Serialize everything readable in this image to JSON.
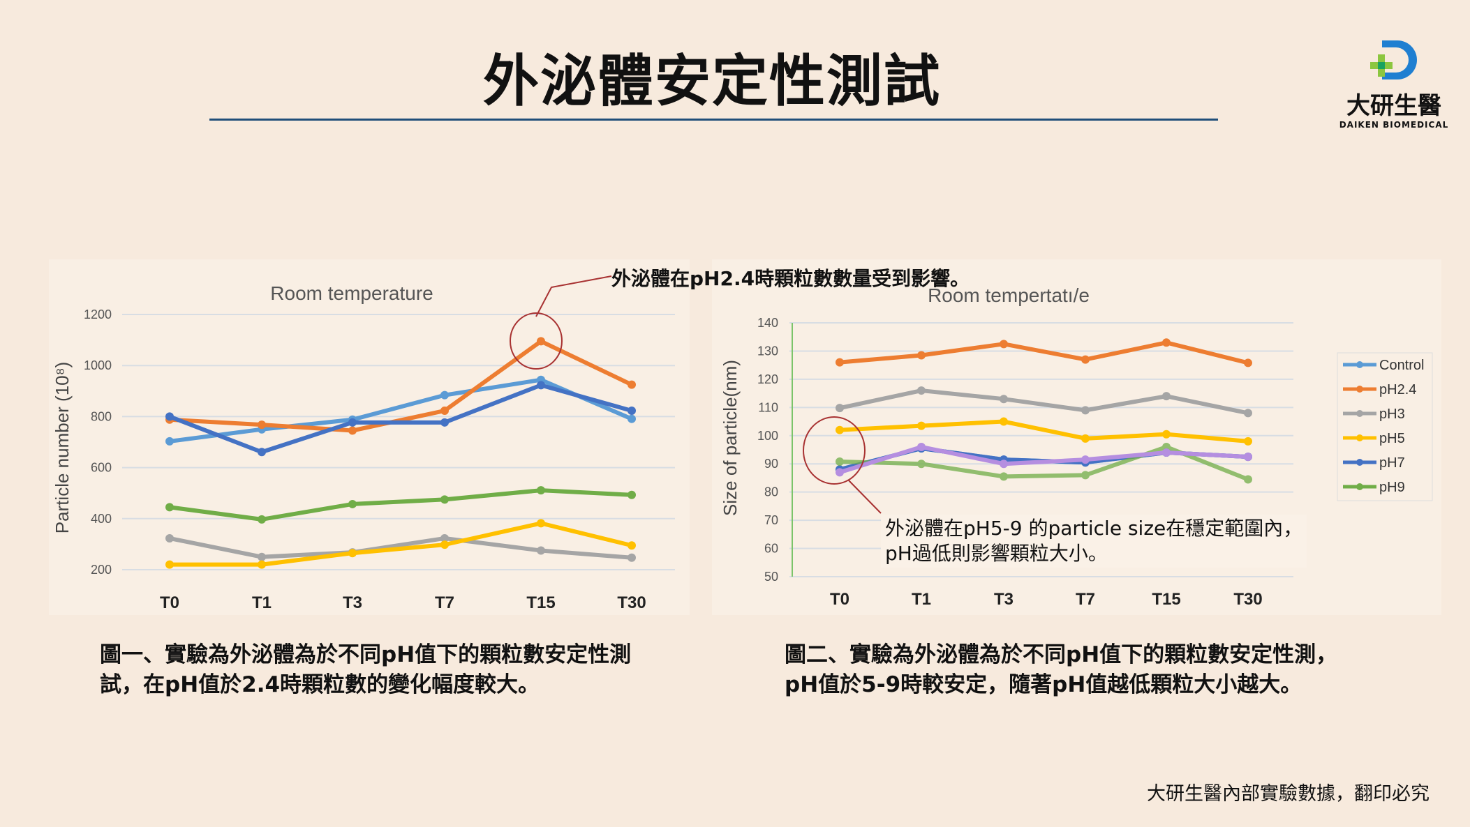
{
  "header": {
    "title": "外泌體安定性測試"
  },
  "logo": {
    "name_cn": "大研生醫",
    "name_en": "DAIKEN BIOMEDICAL"
  },
  "annotations": {
    "left": "外泌體在pH2.4時顆粒數數量受到影響。",
    "right_line1": "外泌體在pH5-9 的particle size在穩定範圍內，",
    "right_line2": "pH過低則影響顆粒大小。"
  },
  "captions": {
    "left_line1": "圖一、實驗為外泌體為於不同pH值下的顆粒數安定性測",
    "left_line2": "試，在pH值於2.4時顆粒數的變化幅度較大。",
    "right_line1": "圖二、實驗為外泌體為於不同pH值下的顆粒數安定性測，",
    "right_line2": "pH值於5-9時較安定，隨著pH值越低顆粒大小越大。"
  },
  "footer": {
    "text": "大研生醫內部實驗數據，翻印必究"
  },
  "chart_data": [
    {
      "type": "line",
      "title": "Room temperature",
      "xlabel": "",
      "ylabel": "Particle number (10⁸)",
      "ylim": [
        200,
        1200
      ],
      "yticks": [
        "200",
        "400",
        "600",
        "800",
        "1000",
        "1200"
      ],
      "grid": true,
      "legend": "none",
      "categories": [
        "T0",
        "T1",
        "T3",
        "T7",
        "T15",
        "T30"
      ],
      "series": [
        {
          "name": "Control",
          "color": "#5b9bd5",
          "values": [
            703,
            750,
            788,
            884,
            944,
            791
          ]
        },
        {
          "name": "pH2.4",
          "color": "#ed7d31",
          "values": [
            788,
            768,
            745,
            823,
            1095,
            925
          ]
        },
        {
          "name": "pH3",
          "color": "#a5a5a5",
          "values": [
            323,
            250,
            268,
            323,
            275,
            247
          ]
        },
        {
          "name": "pH5",
          "color": "#ffc000",
          "values": [
            220,
            220,
            265,
            298,
            382,
            295
          ]
        },
        {
          "name": "pH7",
          "color": "#4472c4",
          "values": [
            800,
            661,
            777,
            777,
            923,
            823
          ]
        },
        {
          "name": "pH9",
          "color": "#70ad47",
          "values": [
            445,
            397,
            457,
            475,
            511,
            493
          ]
        }
      ]
    },
    {
      "type": "line",
      "title": "Room tempertatı/e",
      "xlabel": "",
      "ylabel": "Size of particle(nm)",
      "ylim": [
        50,
        140
      ],
      "yticks": [
        "50",
        "60",
        "70",
        "80",
        "90",
        "100",
        "110",
        "120",
        "130",
        "140"
      ],
      "grid": true,
      "legend": "right",
      "categories": [
        "T0",
        "T1",
        "T3",
        "T7",
        "T15",
        "T30"
      ],
      "series": [
        {
          "name": "Control",
          "color": "#5b9bd5",
          "values": [
            88,
            95.5,
            91.5,
            90.5,
            94,
            92.5
          ]
        },
        {
          "name": "pH2.4",
          "color": "#ed7d31",
          "values": [
            126,
            128.5,
            132.5,
            127,
            133,
            125.8
          ]
        },
        {
          "name": "pH3",
          "color": "#a5a5a5",
          "values": [
            109.8,
            116,
            113,
            109,
            114,
            108
          ]
        },
        {
          "name": "pH5",
          "color": "#ffc000",
          "values": [
            102,
            103.5,
            105,
            99,
            100.5,
            98
          ]
        },
        {
          "name": "pH7",
          "color": "#4472c4",
          "values": [
            88,
            95.5,
            91.5,
            90.5,
            94,
            92.5
          ]
        },
        {
          "name": "pH9",
          "color": "#70ad47",
          "values": [
            90.8,
            90,
            85.5,
            86,
            96,
            84.5
          ]
        },
        {
          "name": "",
          "color": "#b58ee0",
          "values": [
            87,
            96,
            90,
            91.5,
            94,
            92.5
          ]
        }
      ]
    }
  ]
}
